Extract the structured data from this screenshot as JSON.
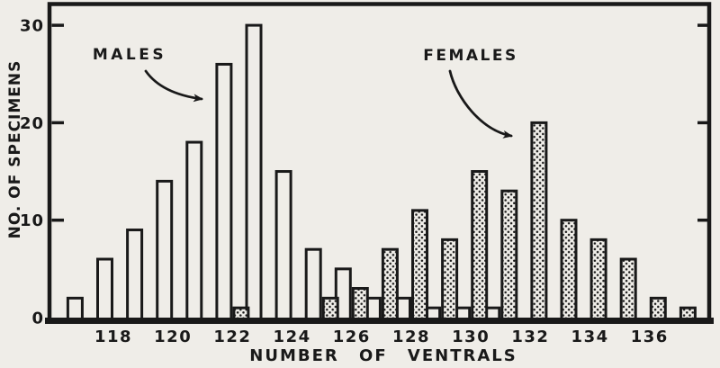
{
  "canvas": {
    "background_color": "#efede8",
    "ink_color": "#191919"
  },
  "chart_data": {
    "type": "bar",
    "title": "",
    "xlabel": "NUMBER OF VENTRALS",
    "ylabel": "NO. OF SPECIMENS",
    "x_tick_labels": [
      "118",
      "120",
      "122",
      "124",
      "126",
      "128",
      "130",
      "132",
      "134",
      "136"
    ],
    "y_tick_labels": [
      "0",
      "10",
      "20",
      "30"
    ],
    "xlim": [
      116,
      138
    ],
    "ylim": [
      0,
      32
    ],
    "grid": false,
    "legend_position": "in-plot annotations with curved arrows",
    "series": [
      {
        "name": "MALES",
        "style": "open",
        "points": [
          [
            117,
            2
          ],
          [
            118,
            6
          ],
          [
            119,
            9
          ],
          [
            120,
            14
          ],
          [
            121,
            18
          ],
          [
            122,
            26
          ],
          [
            123,
            30
          ],
          [
            124,
            15
          ],
          [
            125,
            7
          ],
          [
            126,
            5
          ],
          [
            127,
            2
          ],
          [
            128,
            2
          ],
          [
            129,
            1
          ],
          [
            130,
            1
          ],
          [
            131,
            1
          ]
        ]
      },
      {
        "name": "FEMALES",
        "style": "stippled",
        "points": [
          [
            122,
            1
          ],
          [
            125,
            2
          ],
          [
            126,
            3
          ],
          [
            127,
            7
          ],
          [
            128,
            11
          ],
          [
            129,
            8
          ],
          [
            130,
            15
          ],
          [
            131,
            13
          ],
          [
            132,
            20
          ],
          [
            133,
            10
          ],
          [
            134,
            8
          ],
          [
            135,
            6
          ],
          [
            136,
            2
          ],
          [
            137,
            1
          ]
        ]
      }
    ],
    "annotations": [
      {
        "label": "MALES",
        "points_to_x": 122
      },
      {
        "label": "FEMALES",
        "points_to_x": 132
      }
    ]
  }
}
